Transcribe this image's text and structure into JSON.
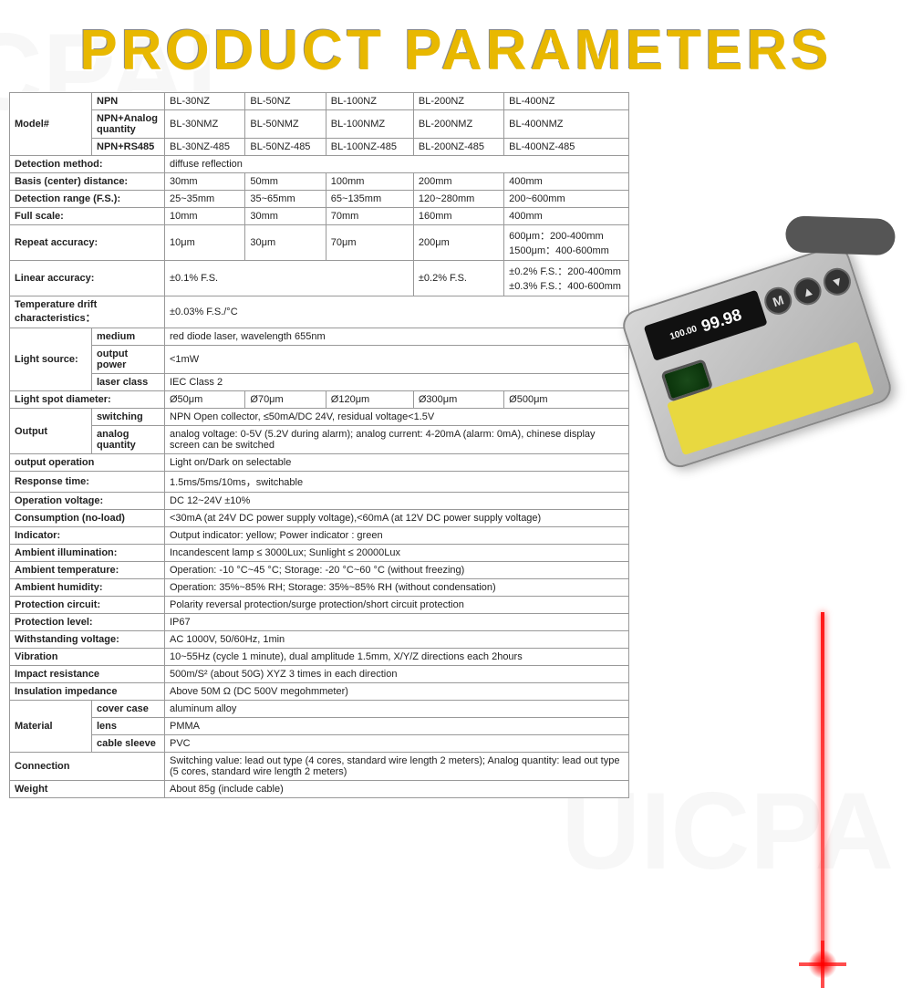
{
  "title": "PRODUCT PARAMETERS",
  "colors": {
    "title_color": "#e8b800",
    "border_color": "#999999",
    "laser_color": "#ff0000",
    "device_body": "#c0c0c0",
    "label_yellow": "#e8d840"
  },
  "device": {
    "display_small": "100.00",
    "display_large": "99.98",
    "btn_m": "M",
    "btn_up": "▲",
    "btn_dn": "▼"
  },
  "table": {
    "model_label": "Model#",
    "model_rows": [
      {
        "sub": "NPN",
        "cells": [
          "BL-30NZ",
          "BL-50NZ",
          "BL-100NZ",
          "BL-200NZ",
          "BL-400NZ"
        ]
      },
      {
        "sub": "NPN+Analog quantity",
        "cells": [
          "BL-30NMZ",
          "BL-50NMZ",
          "BL-100NMZ",
          "BL-200NMZ",
          "BL-400NMZ"
        ]
      },
      {
        "sub": "NPN+RS485",
        "cells": [
          "BL-30NZ-485",
          "BL-50NZ-485",
          "BL-100NZ-485",
          "BL-200NZ-485",
          "BL-400NZ-485"
        ]
      }
    ],
    "detection_method": {
      "label": "Detection method:",
      "value": "diffuse reflection"
    },
    "basis_distance": {
      "label": "Basis (center) distance:",
      "cells": [
        "30mm",
        "50mm",
        "100mm",
        "200mm",
        "400mm"
      ]
    },
    "detection_range": {
      "label": "Detection range (F.S.):",
      "cells": [
        "25~35mm",
        "35~65mm",
        "65~135mm",
        "120~280mm",
        "200~600mm"
      ]
    },
    "full_scale": {
      "label": "Full scale:",
      "cells": [
        "10mm",
        "30mm",
        "70mm",
        "160mm",
        "400mm"
      ]
    },
    "repeat_accuracy": {
      "label": "Repeat accuracy:",
      "cells": [
        "10μm",
        "30μm",
        "70μm",
        "200μm",
        "600μm：200-400mm\n1500μm：400-600mm"
      ]
    },
    "linear_accuracy": {
      "label": "Linear accuracy:",
      "c1": "±0.1% F.S.",
      "c2": "±0.2% F.S.",
      "c3": "±0.2% F.S.：200-400mm\n±0.3% F.S.：400-600mm"
    },
    "temp_drift": {
      "label": "Temperature drift characteristics：",
      "value": "±0.03% F.S./°C"
    },
    "light_source": {
      "label": "Light source:",
      "rows": [
        {
          "sub": "medium",
          "value": "red diode laser, wavelength 655nm"
        },
        {
          "sub": "output power",
          "value": "<1mW"
        },
        {
          "sub": "laser class",
          "value": "IEC Class 2"
        }
      ]
    },
    "spot_diameter": {
      "label": "Light spot diameter:",
      "cells": [
        "Ø50μm",
        "Ø70μm",
        "Ø120μm",
        "Ø300μm",
        "Ø500μm"
      ]
    },
    "output": {
      "label": "Output",
      "rows": [
        {
          "sub": "switching",
          "value": "NPN Open collector, ≤50mA/DC 24V, residual voltage<1.5V"
        },
        {
          "sub": "analog quantity",
          "value": "analog voltage: 0-5V (5.2V during alarm); analog current: 4-20mA (alarm: 0mA), chinese display screen can be switched"
        }
      ]
    },
    "simple_rows": [
      {
        "label": "output operation",
        "value": "Light on/Dark on selectable"
      },
      {
        "label": "Response time:",
        "value": "1.5ms/5ms/10ms，switchable"
      },
      {
        "label": "Operation voltage:",
        "value": "DC 12~24V ±10%"
      },
      {
        "label": "Consumption (no-load)",
        "value": "<30mA (at 24V DC power supply voltage),<60mA (at 12V DC power supply voltage)"
      },
      {
        "label": "Indicator:",
        "value": "Output indicator: yellow; Power indicator : green"
      },
      {
        "label": "Ambient illumination:",
        "value": "Incandescent lamp ≤ 3000Lux; Sunlight ≤ 20000Lux"
      },
      {
        "label": "Ambient temperature:",
        "value": "Operation: -10 °C~45 °C; Storage: -20 °C~60 °C (without freezing)"
      },
      {
        "label": "Ambient humidity:",
        "value": "Operation: 35%~85% RH; Storage: 35%~85% RH (without condensation)"
      },
      {
        "label": "Protection circuit:",
        "value": "Polarity reversal protection/surge protection/short circuit protection"
      },
      {
        "label": "Protection level:",
        "value": "IP67"
      },
      {
        "label": "Withstanding voltage:",
        "value": "AC 1000V, 50/60Hz, 1min"
      },
      {
        "label": "Vibration",
        "value": "10~55Hz (cycle 1 minute), dual amplitude 1.5mm, X/Y/Z directions each 2hours"
      },
      {
        "label": "Impact resistance",
        "value": "500m/S² (about 50G) XYZ 3 times in each direction"
      },
      {
        "label": "Insulation impedance",
        "value": "Above 50M Ω (DC 500V megohmmeter)"
      }
    ],
    "material": {
      "label": "Material",
      "rows": [
        {
          "sub": "cover case",
          "value": "aluminum alloy"
        },
        {
          "sub": "lens",
          "value": "PMMA"
        },
        {
          "sub": "cable sleeve",
          "value": "PVC"
        }
      ]
    },
    "connection": {
      "label": "Connection",
      "value": "Switching value: lead out type (4 cores, standard wire length 2 meters); Analog quantity: lead out type (5 cores, standard wire length 2 meters)"
    },
    "weight": {
      "label": "Weight",
      "value": "About 85g (include cable)"
    }
  }
}
